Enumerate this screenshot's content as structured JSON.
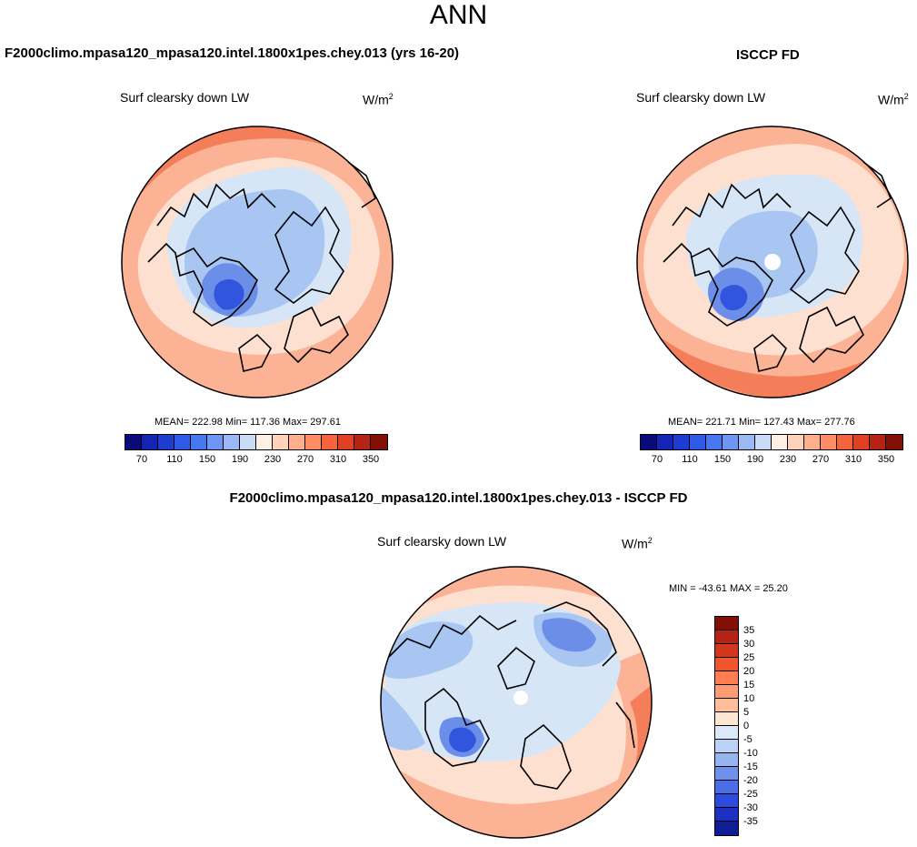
{
  "page": {
    "title": "ANN"
  },
  "panels": [
    {
      "id": "model",
      "title": "F2000climo.mpasa120_mpasa120.intel.1800x1pes.chey.013 (yrs 16-20)",
      "variable": "Surf clearsky down LW",
      "units": "W/m",
      "units_sup": "2",
      "stats": "MEAN= 222.98  Min= 117.36  Max= 297.61"
    },
    {
      "id": "obs",
      "title": "ISCCP FD",
      "variable": "Surf clearsky down LW",
      "units": "W/m",
      "units_sup": "2",
      "stats": "MEAN= 221.71  Min= 127.43  Max= 277.76"
    },
    {
      "id": "diff",
      "title": "F2000climo.mpasa120_mpasa120.intel.1800x1pes.chey.013 - ISCCP FD",
      "variable": "Surf clearsky down LW",
      "units": "W/m",
      "units_sup": "2",
      "stats": "MIN = -43.61 MAX =  25.20"
    }
  ],
  "colorbar_main": {
    "colors": [
      "#0a0a78",
      "#1424b4",
      "#1e3cd2",
      "#2d5ae6",
      "#4678f0",
      "#6e96f5",
      "#9bb9f5",
      "#c8dcf5",
      "#fff0e6",
      "#ffd2b9",
      "#ffaf8c",
      "#ff8c64",
      "#f5643c",
      "#e14123",
      "#b42314",
      "#821005"
    ],
    "tick_labels": [
      "70",
      "110",
      "150",
      "190",
      "230",
      "270",
      "310",
      "350"
    ]
  },
  "colorbar_diff": {
    "colors": [
      "#821005",
      "#b42314",
      "#d2371e",
      "#f0552d",
      "#ff7d50",
      "#ff9b73",
      "#ffbe9b",
      "#ffe6d2",
      "#dce9f8",
      "#b9d2f5",
      "#96b4f0",
      "#6e91eb",
      "#4b6ee6",
      "#2d4bdc",
      "#1e30c3",
      "#0f1e96"
    ],
    "tick_labels": [
      "35",
      "30",
      "25",
      "20",
      "15",
      "10",
      "5",
      "0",
      "-5",
      "-10",
      "-15",
      "-20",
      "-25",
      "-30",
      "-35"
    ]
  },
  "map_colors": {
    "warm_outer": "#f47e5a",
    "warm_mid": "#fbb295",
    "warm_light": "#fde0d0",
    "cool_light": "#d6e6f7",
    "cool_mid": "#a9c6f2",
    "cool_deep": "#6b8ee9",
    "cool_core": "#3156dd",
    "pole_hole": "#ffffff"
  }
}
